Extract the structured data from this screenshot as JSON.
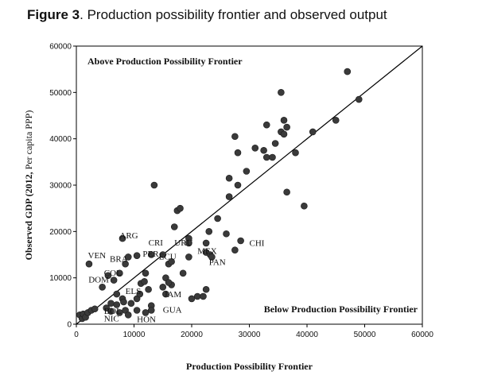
{
  "figure": {
    "label": "Figure 3",
    "title_rest": ". Production possibility frontier and observed output"
  },
  "chart_data": {
    "type": "scatter",
    "title": "Figure 3. Production possibility frontier and observed output",
    "xlabel": "Production Possibility Frontier",
    "ylabel_main": "Observed GDP (2012,",
    "ylabel_unit": " Per capita PPP)",
    "xlim": [
      0,
      60000
    ],
    "ylim": [
      0,
      60000
    ],
    "xticks": [
      0,
      10000,
      20000,
      30000,
      40000,
      50000,
      60000
    ],
    "yticks": [
      0,
      10000,
      20000,
      30000,
      40000,
      50000,
      60000
    ],
    "grid": false,
    "reference_line": {
      "from": [
        0,
        0
      ],
      "to": [
        60000,
        60000
      ]
    },
    "annotations": {
      "above": "Above Production Possibility Frontier",
      "below": "Below Production Possibility Frontier"
    },
    "labels": [
      {
        "text": "ARG",
        "x": 7500,
        "y": 18500
      },
      {
        "text": "CRI",
        "x": 12500,
        "y": 17000
      },
      {
        "text": "URU",
        "x": 17000,
        "y": 17000
      },
      {
        "text": "PER",
        "x": 11500,
        "y": 14600
      },
      {
        "text": "ECU",
        "x": 14300,
        "y": 14000
      },
      {
        "text": "MEX",
        "x": 21000,
        "y": 15200
      },
      {
        "text": "VEN",
        "x": 2000,
        "y": 14200
      },
      {
        "text": "BRA",
        "x": 5800,
        "y": 13500
      },
      {
        "text": "COL",
        "x": 4800,
        "y": 10500
      },
      {
        "text": "DOM",
        "x": 2100,
        "y": 9000
      },
      {
        "text": "PAN",
        "x": 23000,
        "y": 12800
      },
      {
        "text": "CHI",
        "x": 30000,
        "y": 16900
      },
      {
        "text": "ELS",
        "x": 8500,
        "y": 6500
      },
      {
        "text": "JAM",
        "x": 15200,
        "y": 5800
      },
      {
        "text": "BOL",
        "x": 4800,
        "y": 2200
      },
      {
        "text": "NIC",
        "x": 4800,
        "y": 600
      },
      {
        "text": "HON",
        "x": 10500,
        "y": 400
      },
      {
        "text": "GUA",
        "x": 15000,
        "y": 2500
      }
    ],
    "points": [
      [
        600,
        2000
      ],
      [
        1000,
        1200
      ],
      [
        1200,
        2200
      ],
      [
        1600,
        1500
      ],
      [
        2000,
        2500
      ],
      [
        2600,
        3000
      ],
      [
        3200,
        3300
      ],
      [
        2200,
        13000
      ],
      [
        4500,
        8000
      ],
      [
        5500,
        10500
      ],
      [
        6500,
        9500
      ],
      [
        7000,
        6500
      ],
      [
        6000,
        4500
      ],
      [
        5200,
        3500
      ],
      [
        6000,
        2800
      ],
      [
        7000,
        4200
      ],
      [
        8000,
        5500
      ],
      [
        8500,
        3000
      ],
      [
        9000,
        2000
      ],
      [
        7500,
        2500
      ],
      [
        8200,
        4800
      ],
      [
        9500,
        4500
      ],
      [
        10500,
        3000
      ],
      [
        10500,
        5500
      ],
      [
        11000,
        6500
      ],
      [
        11200,
        8800
      ],
      [
        11800,
        9200
      ],
      [
        12500,
        7500
      ],
      [
        13000,
        4000
      ],
      [
        12000,
        2500
      ],
      [
        13000,
        3000
      ],
      [
        15000,
        8000
      ],
      [
        15500,
        10000
      ],
      [
        16500,
        8500
      ],
      [
        16000,
        9000
      ],
      [
        15500,
        6500
      ],
      [
        8000,
        18500
      ],
      [
        7500,
        11000
      ],
      [
        8500,
        13000
      ],
      [
        9000,
        14500
      ],
      [
        10500,
        14800
      ],
      [
        12000,
        11000
      ],
      [
        13000,
        15000
      ],
      [
        13500,
        30000
      ],
      [
        15000,
        15000
      ],
      [
        16000,
        13000
      ],
      [
        16500,
        13500
      ],
      [
        17000,
        21000
      ],
      [
        17500,
        24500
      ],
      [
        18000,
        25000
      ],
      [
        19500,
        18500
      ],
      [
        19500,
        17500
      ],
      [
        19500,
        14500
      ],
      [
        18500,
        11000
      ],
      [
        20000,
        5500
      ],
      [
        21000,
        6000
      ],
      [
        22000,
        6000
      ],
      [
        22500,
        7500
      ],
      [
        22500,
        17500
      ],
      [
        23000,
        20000
      ],
      [
        24500,
        22800
      ],
      [
        22500,
        15500
      ],
      [
        23200,
        15000
      ],
      [
        23500,
        14500
      ],
      [
        26000,
        19500
      ],
      [
        26500,
        31500
      ],
      [
        26500,
        27500
      ],
      [
        27500,
        40500
      ],
      [
        27500,
        16000
      ],
      [
        28000,
        37000
      ],
      [
        28000,
        30000
      ],
      [
        28500,
        18000
      ],
      [
        29500,
        33000
      ],
      [
        31000,
        38000
      ],
      [
        32500,
        37500
      ],
      [
        33000,
        43000
      ],
      [
        33000,
        36000
      ],
      [
        34000,
        36000
      ],
      [
        34500,
        39000
      ],
      [
        35500,
        41500
      ],
      [
        35500,
        50000
      ],
      [
        36000,
        41000
      ],
      [
        36000,
        44000
      ],
      [
        36500,
        42500
      ],
      [
        36500,
        28500
      ],
      [
        38000,
        37000
      ],
      [
        39500,
        25500
      ],
      [
        41000,
        41500
      ],
      [
        45000,
        44000
      ],
      [
        47000,
        54500
      ],
      [
        49000,
        48500
      ]
    ]
  }
}
